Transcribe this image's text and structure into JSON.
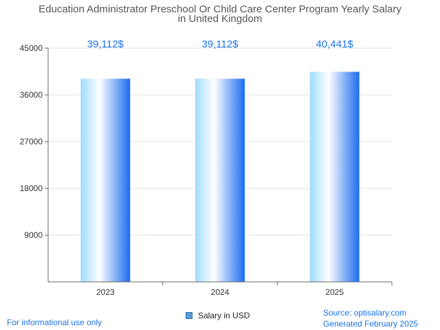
{
  "chart_data": {
    "type": "bar",
    "title": "Education Administrator Preschool Or Child Care Center Program Yearly Salary",
    "subtitle": "in United Kingdom",
    "categories": [
      "2023",
      "2024",
      "2025"
    ],
    "series": [
      {
        "name": "Salary in USD",
        "values": [
          39112,
          39112,
          40441
        ]
      }
    ],
    "data_labels": [
      "39,112$",
      "39,112$",
      "40,441$"
    ],
    "yticks": [
      9000,
      18000,
      27000,
      36000,
      45000
    ],
    "ylim": [
      0,
      45000
    ],
    "xlabel": "",
    "ylabel": "",
    "grid": true,
    "legend_position": "bottom"
  },
  "footer": {
    "disclaimer": "For informational use only",
    "source": "Source: optisalary.com",
    "generated": "Generated February 2025"
  },
  "colors": {
    "bar_edge": "#1a6cf0",
    "bar_light": "#ffffff",
    "bar_sky": "#9fdcff",
    "label": "#1a73e8",
    "grid": "#e2e2e2",
    "axis": "#666666"
  }
}
